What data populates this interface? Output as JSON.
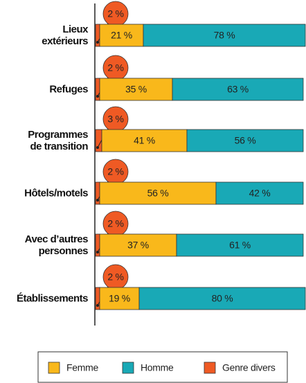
{
  "chart_data": {
    "type": "stacked-barh",
    "categories": [
      "Lieux\nextérieurs",
      "Refuges",
      "Programmes\nde transition",
      "Hôtels/motels",
      "Avec d’autres\npersonnes",
      "Établissements"
    ],
    "series": [
      {
        "name": "Femme",
        "color": "#f9b81b",
        "values": [
          21,
          35,
          41,
          56,
          37,
          19
        ],
        "value_labels": [
          "21 %",
          "35 %",
          "41 %",
          "56 %",
          "37 %",
          "19 %"
        ]
      },
      {
        "name": "Homme",
        "color": "#19a9b6",
        "values": [
          78,
          63,
          56,
          42,
          61,
          80
        ],
        "value_labels": [
          "78 %",
          "63 %",
          "56 %",
          "42 %",
          "61 %",
          "80 %"
        ]
      },
      {
        "name": "Genre divers",
        "color": "#ef5a24",
        "values": [
          2,
          2,
          3,
          2,
          2,
          2
        ],
        "value_labels": [
          "2 %",
          "2 %",
          "3 %",
          "2 %",
          "2 %",
          "2 %"
        ]
      }
    ]
  }
}
